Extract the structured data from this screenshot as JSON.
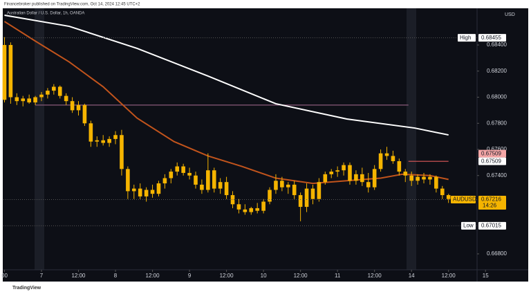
{
  "header": "Financebroker published on TradingView.com, Oct 14, 2024 12:45 UTC+2",
  "footer": "TradingView",
  "chart_data": {
    "type": "candlestick",
    "title": "Australian Dollar / U.S. Dollar, 1h, OANDA",
    "currency": "USD",
    "color": "#f5b400",
    "x": [
      -12,
      -10,
      -8,
      -6,
      -4,
      -2,
      0,
      2,
      4,
      6,
      8,
      10,
      12,
      14,
      16,
      18,
      20,
      22,
      24,
      26,
      28,
      30,
      32,
      34,
      36,
      38,
      40,
      42,
      44,
      46,
      48,
      50,
      52,
      54,
      56,
      58,
      60,
      62,
      64,
      66,
      68,
      70,
      72,
      74,
      76,
      78,
      80,
      82,
      84,
      86,
      88,
      90,
      92,
      94,
      96,
      98,
      100,
      102,
      104,
      106,
      108,
      110,
      112,
      114,
      116,
      118,
      120,
      122,
      124,
      126,
      128,
      130,
      132
    ],
    "open": [
      0.6798,
      0.684,
      0.68,
      0.6797,
      0.6799,
      0.6796,
      0.68,
      0.6802,
      0.6805,
      0.6808,
      0.6801,
      0.6797,
      0.679,
      0.6794,
      0.678,
      0.6766,
      0.6767,
      0.6765,
      0.6768,
      0.6771,
      0.6745,
      0.6728,
      0.673,
      0.6724,
      0.6729,
      0.6726,
      0.6734,
      0.6738,
      0.6743,
      0.6747,
      0.6742,
      0.674,
      0.6733,
      0.6729,
      0.6744,
      0.673,
      0.6735,
      0.6725,
      0.6718,
      0.6714,
      0.6712,
      0.6715,
      0.6713,
      0.672,
      0.6729,
      0.6736,
      0.6731,
      0.6733,
      0.6725,
      0.6716,
      0.673,
      0.6722,
      0.6735,
      0.6741,
      0.6743,
      0.6744,
      0.6748,
      0.6736,
      0.6741,
      0.6735,
      0.6731,
      0.6745,
      0.6757,
      0.6755,
      0.6751,
      0.6743,
      0.674,
      0.6736,
      0.6739,
      0.6737,
      0.6739,
      0.673,
      0.6725
    ],
    "high": [
      0.6846,
      0.6842,
      0.6803,
      0.6801,
      0.6802,
      0.6801,
      0.6804,
      0.6807,
      0.681,
      0.6809,
      0.6803,
      0.68,
      0.6797,
      0.6795,
      0.6782,
      0.677,
      0.6771,
      0.677,
      0.6774,
      0.6775,
      0.6747,
      0.6733,
      0.6734,
      0.6731,
      0.6733,
      0.6736,
      0.6741,
      0.6745,
      0.675,
      0.6749,
      0.6746,
      0.6743,
      0.6737,
      0.6757,
      0.6746,
      0.6738,
      0.6739,
      0.6728,
      0.6722,
      0.6718,
      0.6716,
      0.6719,
      0.6722,
      0.6731,
      0.6741,
      0.6739,
      0.6735,
      0.6736,
      0.6727,
      0.6734,
      0.6733,
      0.6738,
      0.6743,
      0.6745,
      0.6747,
      0.675,
      0.675,
      0.6744,
      0.6746,
      0.6742,
      0.6748,
      0.676,
      0.6762,
      0.6759,
      0.6753,
      0.6745,
      0.6743,
      0.6741,
      0.6742,
      0.6741,
      0.674,
      0.6732,
      0.6726
    ],
    "low": [
      0.6796,
      0.6795,
      0.6794,
      0.6793,
      0.6795,
      0.6794,
      0.6797,
      0.6799,
      0.6802,
      0.6799,
      0.6794,
      0.6788,
      0.6786,
      0.6778,
      0.6762,
      0.6762,
      0.6763,
      0.6762,
      0.6764,
      0.674,
      0.6722,
      0.6722,
      0.6722,
      0.672,
      0.6723,
      0.6724,
      0.673,
      0.6734,
      0.674,
      0.674,
      0.6737,
      0.673,
      0.6726,
      0.6727,
      0.6727,
      0.6726,
      0.6722,
      0.6715,
      0.6711,
      0.671,
      0.671,
      0.6711,
      0.6711,
      0.6718,
      0.6726,
      0.6728,
      0.6726,
      0.6722,
      0.6705,
      0.6712,
      0.6718,
      0.672,
      0.6733,
      0.6738,
      0.6739,
      0.674,
      0.6733,
      0.6733,
      0.6732,
      0.6727,
      0.6729,
      0.6743,
      0.6752,
      0.6749,
      0.674,
      0.6735,
      0.6732,
      0.6733,
      0.6734,
      0.6733,
      0.6727,
      0.6722,
      0.6719
    ],
    "close": [
      0.684,
      0.68,
      0.6797,
      0.6799,
      0.6796,
      0.68,
      0.6802,
      0.6805,
      0.6808,
      0.6801,
      0.6797,
      0.679,
      0.6794,
      0.678,
      0.6766,
      0.6767,
      0.6765,
      0.6768,
      0.6771,
      0.6745,
      0.6728,
      0.673,
      0.6724,
      0.6729,
      0.6726,
      0.6734,
      0.6738,
      0.6743,
      0.6747,
      0.6742,
      0.674,
      0.6733,
      0.6729,
      0.6744,
      0.673,
      0.6735,
      0.6725,
      0.6718,
      0.6714,
      0.6712,
      0.6715,
      0.6713,
      0.672,
      0.6729,
      0.6736,
      0.6731,
      0.6733,
      0.6725,
      0.6716,
      0.673,
      0.6722,
      0.6735,
      0.6741,
      0.6743,
      0.6744,
      0.6748,
      0.6736,
      0.6741,
      0.6735,
      0.6731,
      0.6745,
      0.6757,
      0.6755,
      0.6751,
      0.6743,
      0.674,
      0.6736,
      0.6739,
      0.6737,
      0.6739,
      0.673,
      0.6725,
      0.6722
    ],
    "moving_averages": [
      {
        "color": "#ffffff",
        "x": [
          -12,
          9,
          31,
          54,
          76,
          99,
          121,
          132
        ],
        "values": [
          0.68628,
          0.68543,
          0.68374,
          0.68162,
          0.6795,
          0.67833,
          0.67764,
          0.67711
        ]
      },
      {
        "color": "#c2541c",
        "x": [
          -12,
          -2,
          9,
          20,
          31,
          43,
          54,
          65,
          76,
          88,
          99,
          110,
          117,
          126,
          132
        ],
        "values": [
          0.6858,
          0.6843,
          0.6827,
          0.6808,
          0.6784,
          0.6766,
          0.6755,
          0.6747,
          0.6738,
          0.6734,
          0.6736,
          0.6738,
          0.6741,
          0.674,
          0.6737
        ]
      }
    ],
    "lines": [
      {
        "value": 0.6794,
        "from": -2,
        "to": 119,
        "color": "#8a5a7a"
      },
      {
        "value": 0.67509,
        "from": 119,
        "to": 132,
        "color": "#e05a5a"
      }
    ],
    "xlim": [
      -12.33,
      141.26
    ],
    "xticks": [
      {
        "value": -12,
        "label": "00"
      },
      {
        "value": 0,
        "label": "7"
      },
      {
        "value": 12,
        "label": "12:00"
      },
      {
        "value": 24,
        "label": "8"
      },
      {
        "value": 36,
        "label": "12:00"
      },
      {
        "value": 48,
        "label": "9"
      },
      {
        "value": 60,
        "label": "12:00"
      },
      {
        "value": 72,
        "label": "10"
      },
      {
        "value": 84,
        "label": "12:00"
      },
      {
        "value": 96,
        "label": "11"
      },
      {
        "value": 108,
        "label": "12:00"
      },
      {
        "value": 120,
        "label": "14"
      },
      {
        "value": 132,
        "label": "12:00"
      },
      {
        "value": 144,
        "label": "15"
      }
    ],
    "ylim": [
      0.66678,
      0.68681
    ],
    "yticks": [
      {
        "value": 0.684,
        "label": "0.68400"
      },
      {
        "value": 0.682,
        "label": "0.68200"
      },
      {
        "value": 0.68,
        "label": "0.68000"
      },
      {
        "value": 0.678,
        "label": "0.67800"
      },
      {
        "value": 0.676,
        "label": "0.67600"
      },
      {
        "value": 0.674,
        "label": "0.67400"
      },
      {
        "value": 0.668,
        "label": "0.66800"
      }
    ],
    "markers": [
      {
        "name": "High",
        "value": 0.68455,
        "color": "#ffffff"
      },
      {
        "value": 0.67509,
        "color": "#f4a6a6"
      },
      {
        "value": 0.67509,
        "color": "#ffffff"
      },
      {
        "name": "AUDUSD",
        "value": 0.67216,
        "countdown": "14:26",
        "color": "#f5b400"
      },
      {
        "name": "Low",
        "value": 0.67015,
        "color": "#ffffff"
      }
    ]
  }
}
